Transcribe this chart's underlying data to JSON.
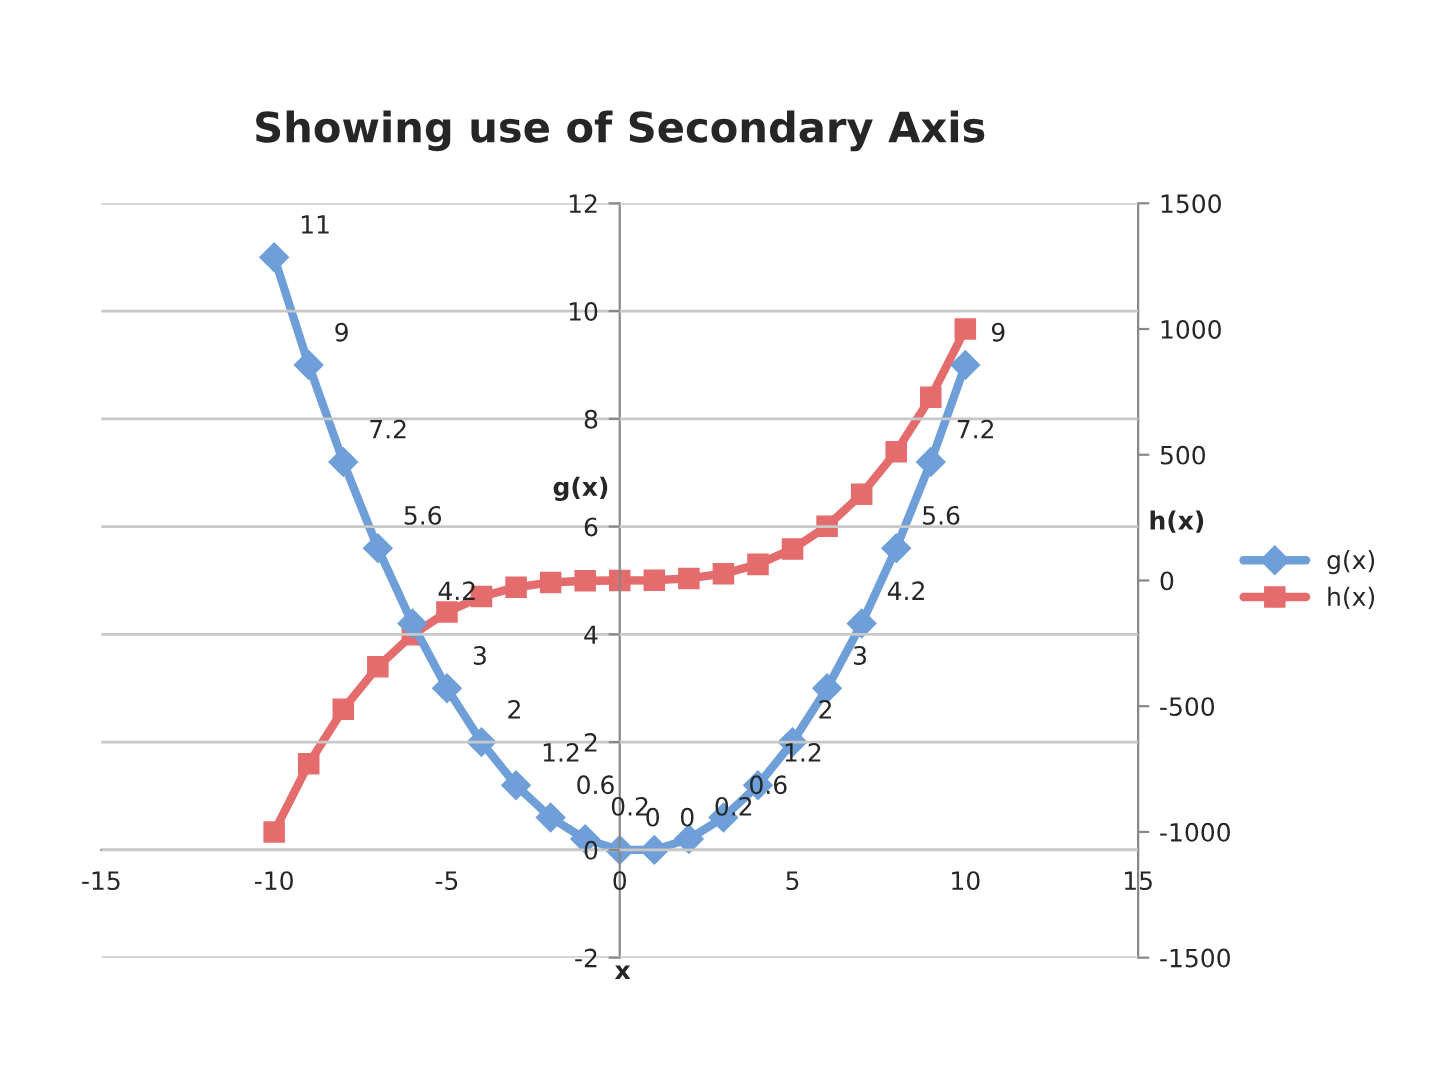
{
  "chart_data": {
    "type": "line",
    "title": "Showing use of Secondary Axis",
    "xlabel": "x",
    "ylabel": "g(x)",
    "y2label": "h(x)",
    "x": [
      -10,
      -9,
      -8,
      -7,
      -6,
      -5,
      -4,
      -3,
      -2,
      -1,
      0,
      1,
      2,
      3,
      4,
      5,
      6,
      7,
      8,
      9,
      10
    ],
    "series": [
      {
        "name": "g(x)",
        "color": "#6f9fd8",
        "marker": "diamond",
        "values": [
          11,
          9,
          7.2,
          5.6,
          4.2,
          3,
          2,
          1.2,
          0.6,
          0.2,
          0,
          0,
          0.2,
          0.6,
          1.2,
          2,
          3,
          4.2,
          5.6,
          7.2,
          9
        ],
        "value_labels": [
          "11",
          "9",
          "7.2",
          "5.6",
          "4.2",
          "3",
          "2",
          "1.2",
          "0.6",
          "0.2",
          "0",
          "0",
          "0.2",
          "0.6",
          "1.2",
          "2",
          "3",
          "4.2",
          "5.6",
          "7.2",
          "9"
        ]
      },
      {
        "name": "h(x)",
        "color": "#e46c6c",
        "marker": "square",
        "axis": "y2",
        "values": [
          -1000,
          -729,
          -512,
          -343,
          -216,
          -125,
          -64,
          -27,
          -8,
          -1,
          0,
          1,
          8,
          27,
          64,
          125,
          216,
          343,
          512,
          729,
          1000
        ]
      }
    ],
    "xlim": [
      -15,
      15
    ],
    "xticks": [
      -15,
      -10,
      -5,
      0,
      5,
      10,
      15
    ],
    "ylim": [
      -2,
      12
    ],
    "yticks": [
      -2,
      0,
      2,
      4,
      6,
      8,
      10,
      12
    ],
    "y2lim": [
      -1500,
      1500
    ],
    "y2ticks": [
      -1500,
      -1000,
      -500,
      0,
      500,
      1000,
      1500
    ],
    "grid": "y",
    "legend": "right",
    "line_style": "solid"
  }
}
